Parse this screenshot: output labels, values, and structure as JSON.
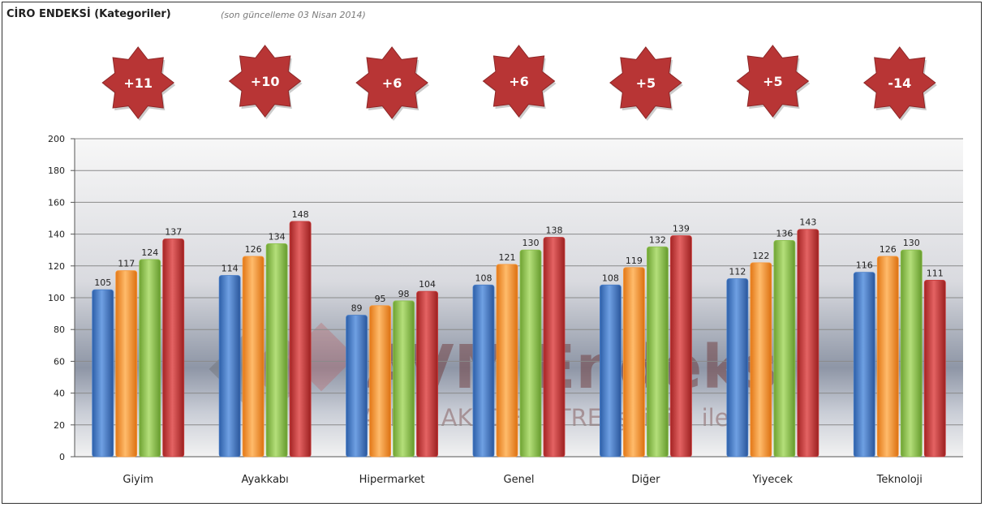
{
  "header": {
    "title": "CİRO ENDEKSİ (Kategoriler)",
    "subtitle": "(son güncelleme 03 Nisan 2014)"
  },
  "watermark": {
    "main": "AVM Endeksi",
    "sub": "AYD & AKADEMETRE işbirliği ile"
  },
  "colors": {
    "series": [
      "#4a7fc9",
      "#f7983a",
      "#8dc04f",
      "#c83c3c"
    ],
    "star": "#b83535"
  },
  "chart_data": {
    "type": "bar",
    "categories": [
      "Giyim",
      "Ayakkabı",
      "Hipermarket",
      "Genel",
      "Diğer",
      "Yiyecek",
      "Teknoloji"
    ],
    "series": [
      {
        "values": [
          105,
          114,
          89,
          108,
          108,
          112,
          116
        ]
      },
      {
        "values": [
          117,
          126,
          95,
          121,
          119,
          122,
          126
        ]
      },
      {
        "values": [
          124,
          134,
          98,
          130,
          132,
          136,
          130
        ]
      },
      {
        "values": [
          137,
          148,
          104,
          138,
          139,
          143,
          111
        ]
      }
    ],
    "changes": [
      "+11",
      "+10",
      "+6",
      "+6",
      "+5",
      "+5",
      "-14"
    ],
    "ylim": [
      0,
      200
    ],
    "yticks": [
      0,
      20,
      40,
      60,
      80,
      100,
      120,
      140,
      160,
      180,
      200
    ],
    "grid": true
  }
}
